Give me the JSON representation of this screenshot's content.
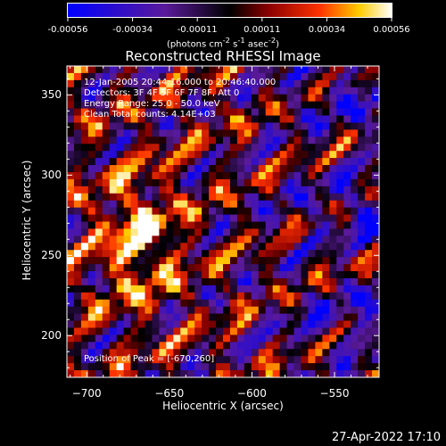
{
  "colors": {
    "background": "#000000",
    "text": "#ffffff",
    "colormap": [
      "#0000ff",
      "#4b0082",
      "#000000",
      "#8b0000",
      "#ff3300",
      "#ffcc00",
      "#ffffff"
    ]
  },
  "colorbar": {
    "ticks": [
      "-0.00056",
      "-0.00034",
      "-0.00011",
      "0.00011",
      "0.00034",
      "0.00056"
    ],
    "units_prefix": "(photons cm",
    "units_exp1": "-2",
    "units_mid": " s",
    "units_exp2": "-1",
    "units_mid2": " asec",
    "units_exp3": "-2",
    "units_suffix": ")"
  },
  "chart_data": {
    "type": "heatmap",
    "title": "Reconstructed RHESSI Image",
    "xlabel": "Heliocentric X (arcsec)",
    "ylabel": "Heliocentric Y (arcsec)",
    "xlim": [
      -712,
      -523
    ],
    "ylim": [
      174,
      368
    ],
    "xticks": [
      -700,
      -650,
      -600,
      -550
    ],
    "yticks": [
      200,
      250,
      300,
      350
    ],
    "colorbar_range": [
      -0.00056,
      0.00056
    ],
    "peak_position": [
      -670,
      260
    ],
    "annotations": [
      "12-Jan-2005 20:44:16.000 to 20:46:40.000",
      "Detectors: 3F 4F 5F 6F 7F 8F, Att 0",
      "Energy Range: 25.0 - 50.0 keV",
      "Clean     Total counts: 4.14E+03"
    ],
    "peak_label": "Position of Peak = [-670,260]"
  },
  "footer": {
    "timestamp": "27-Apr-2022 17:10"
  }
}
